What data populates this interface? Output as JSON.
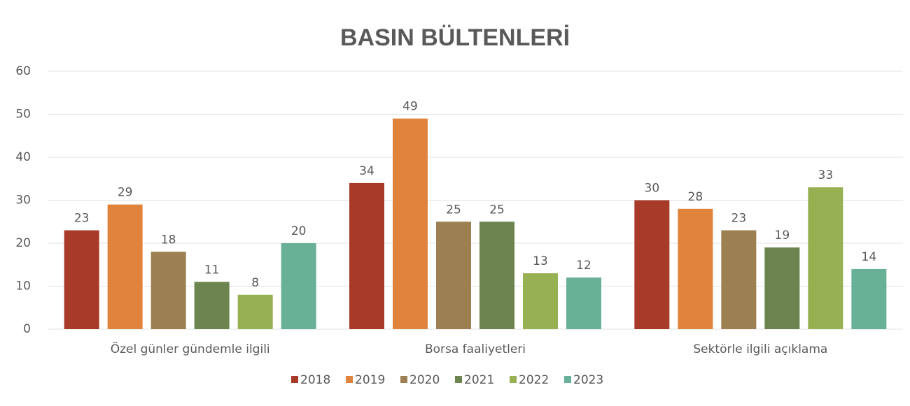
{
  "chart_data": {
    "type": "bar",
    "title": "BASIN BÜLTENLERİ",
    "categories": [
      "Özel günler gündemle ilgili",
      "Borsa faaliyetleri",
      "Sektörle ilgili açıklama"
    ],
    "series": [
      {
        "name": "2018",
        "color": "#a83a2a",
        "values": [
          23,
          34,
          30
        ]
      },
      {
        "name": "2019",
        "color": "#e0833c",
        "values": [
          29,
          49,
          28
        ]
      },
      {
        "name": "2020",
        "color": "#9c8052",
        "values": [
          18,
          25,
          23
        ]
      },
      {
        "name": "2021",
        "color": "#6c8550",
        "values": [
          11,
          25,
          19
        ]
      },
      {
        "name": "2022",
        "color": "#97b052",
        "values": [
          8,
          13,
          33
        ]
      },
      {
        "name": "2023",
        "color": "#68b096",
        "values": [
          20,
          12,
          14
        ]
      }
    ],
    "ylim": [
      0,
      60
    ],
    "yticks": [
      0,
      10,
      20,
      30,
      40,
      50,
      60
    ],
    "grid": true,
    "legend": "bottom"
  }
}
